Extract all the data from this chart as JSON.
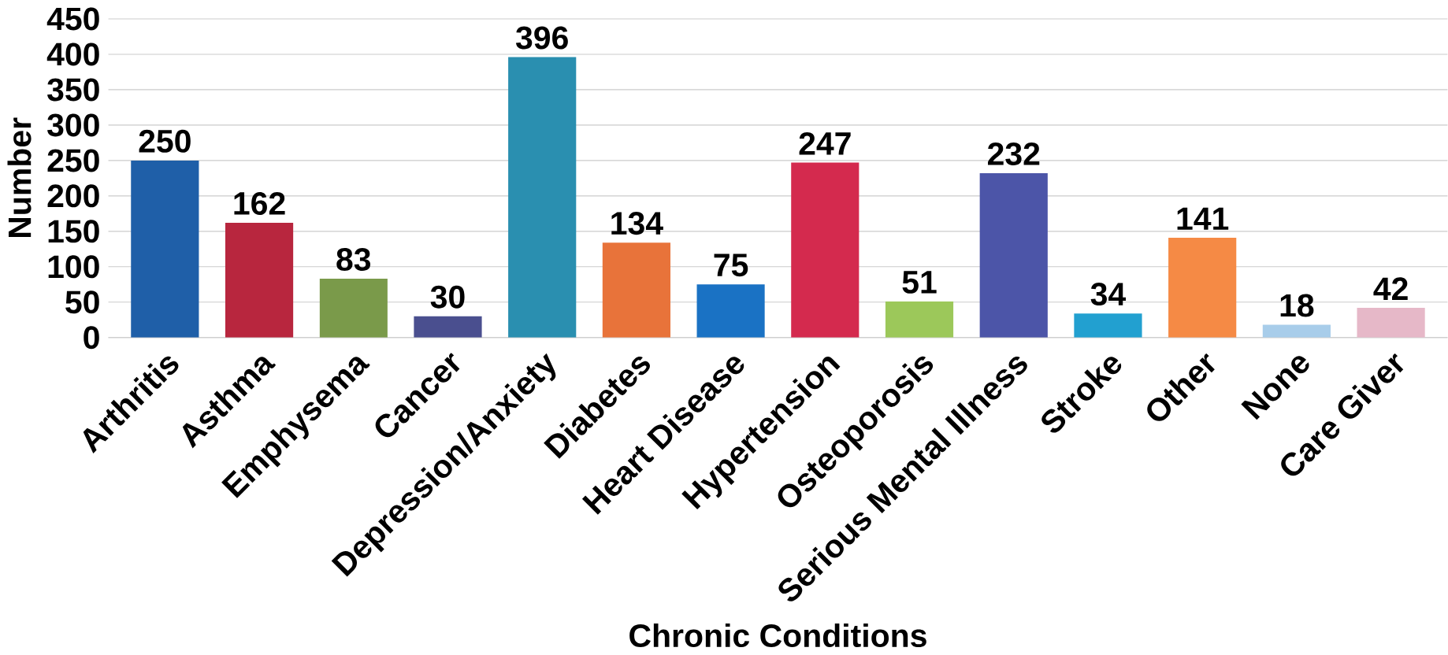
{
  "chart_data": {
    "type": "bar",
    "xlabel": "Chronic Conditions",
    "ylabel": "Number",
    "categories": [
      "Arthritis",
      "Asthma",
      "Emphysema",
      "Cancer",
      "Depression/Anxiety",
      "Diabetes",
      "Heart Disease",
      "Hypertension",
      "Osteoporosis",
      "Serious Mental Illness",
      "Stroke",
      "Other",
      "None",
      "Care Giver"
    ],
    "values": [
      250,
      162,
      83,
      30,
      396,
      134,
      75,
      247,
      51,
      232,
      34,
      141,
      18,
      42
    ],
    "colors": [
      "#1f5fa8",
      "#b8263e",
      "#7a9a4a",
      "#4a4f8f",
      "#2a8fb0",
      "#e8733a",
      "#1a72c4",
      "#d42a4e",
      "#9cc85a",
      "#4c55a8",
      "#22a0d0",
      "#f58a45",
      "#a8cdea",
      "#e6b8c8"
    ],
    "ylim": [
      0,
      450
    ],
    "yticks": [
      0,
      50,
      100,
      150,
      200,
      250,
      300,
      350,
      400,
      450
    ],
    "grid": "y",
    "data_labels": true
  }
}
